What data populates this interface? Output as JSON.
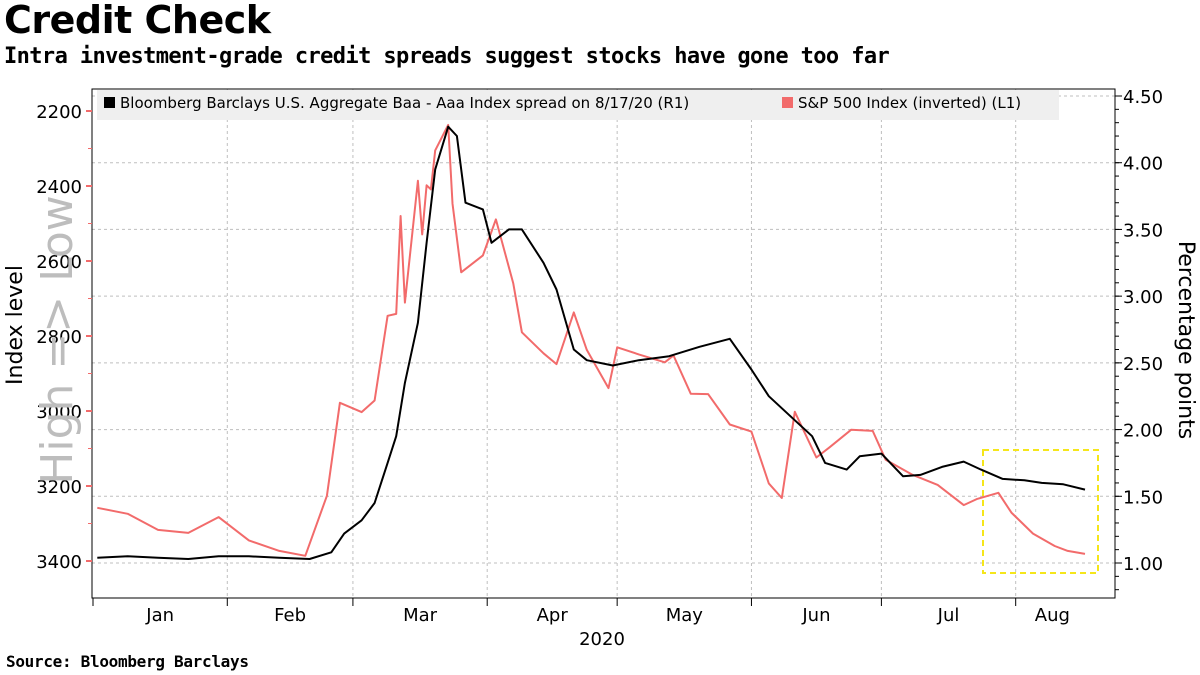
{
  "header": {
    "title": "Credit Check",
    "subtitle": "Intra investment-grade credit spreads suggest stocks have gone too far"
  },
  "footer": {
    "source": "Source: Bloomberg Barclays"
  },
  "colors": {
    "spread": "#000000",
    "sp500": "#f26b6b",
    "highlight": "#f5e61b",
    "grid": "#bfbfbf"
  },
  "chart_data": {
    "type": "line",
    "x_tick_labels": [
      "Jan",
      "Feb",
      "Mar",
      "Apr",
      "May",
      "Jun",
      "Jul",
      "Aug"
    ],
    "x_year_label": "2020",
    "left_axis": {
      "label": "Index level",
      "watermark": "High => Low",
      "inverted": true,
      "range": [
        2150,
        3500
      ],
      "ticks": [
        2200,
        2400,
        2600,
        2800,
        3000,
        3200,
        3400
      ]
    },
    "right_axis": {
      "label": "Percentage points",
      "range": [
        0.75,
        4.55
      ],
      "ticks": [
        "4.50",
        "4.00",
        "3.50",
        "3.00",
        "2.50",
        "2.00",
        "1.50",
        "1.00"
      ]
    },
    "legend": [
      {
        "name": "Bloomberg Barclays U.S. Aggregate Baa - Aaa Index spread on 8/17/20 (R1)",
        "color": "#000000"
      },
      {
        "name": "S&P 500 Index (inverted) (L1)",
        "color": "#f26b6b"
      }
    ],
    "grid": true,
    "annotation": "dashed yellow box highlighting late July to mid August divergence",
    "series": [
      {
        "name": "Bloomberg Barclays U.S. Aggregate Baa - Aaa Index spread on 8/17/20 (R1)",
        "axis": "right",
        "points": [
          [
            "2020-01-02",
            1.04
          ],
          [
            "2020-01-09",
            1.05
          ],
          [
            "2020-01-16",
            1.04
          ],
          [
            "2020-01-23",
            1.03
          ],
          [
            "2020-01-30",
            1.05
          ],
          [
            "2020-02-06",
            1.05
          ],
          [
            "2020-02-13",
            1.04
          ],
          [
            "2020-02-20",
            1.03
          ],
          [
            "2020-02-25",
            1.08
          ],
          [
            "2020-02-28",
            1.22
          ],
          [
            "2020-03-03",
            1.32
          ],
          [
            "2020-03-06",
            1.45
          ],
          [
            "2020-03-09",
            1.75
          ],
          [
            "2020-03-11",
            1.95
          ],
          [
            "2020-03-13",
            2.35
          ],
          [
            "2020-03-16",
            2.8
          ],
          [
            "2020-03-18",
            3.4
          ],
          [
            "2020-03-20",
            3.95
          ],
          [
            "2020-03-23",
            4.27
          ],
          [
            "2020-03-25",
            4.2
          ],
          [
            "2020-03-27",
            3.7
          ],
          [
            "2020-03-31",
            3.65
          ],
          [
            "2020-04-02",
            3.4
          ],
          [
            "2020-04-06",
            3.5
          ],
          [
            "2020-04-09",
            3.5
          ],
          [
            "2020-04-14",
            3.25
          ],
          [
            "2020-04-17",
            3.05
          ],
          [
            "2020-04-21",
            2.6
          ],
          [
            "2020-04-24",
            2.52
          ],
          [
            "2020-04-30",
            2.48
          ],
          [
            "2020-05-06",
            2.52
          ],
          [
            "2020-05-13",
            2.55
          ],
          [
            "2020-05-20",
            2.62
          ],
          [
            "2020-05-27",
            2.68
          ],
          [
            "2020-06-01",
            2.45
          ],
          [
            "2020-06-05",
            2.25
          ],
          [
            "2020-06-10",
            2.1
          ],
          [
            "2020-06-15",
            1.95
          ],
          [
            "2020-06-18",
            1.75
          ],
          [
            "2020-06-23",
            1.7
          ],
          [
            "2020-06-26",
            1.8
          ],
          [
            "2020-07-01",
            1.82
          ],
          [
            "2020-07-06",
            1.65
          ],
          [
            "2020-07-10",
            1.66
          ],
          [
            "2020-07-15",
            1.72
          ],
          [
            "2020-07-20",
            1.76
          ],
          [
            "2020-07-24",
            1.7
          ],
          [
            "2020-07-29",
            1.63
          ],
          [
            "2020-08-03",
            1.62
          ],
          [
            "2020-08-07",
            1.6
          ],
          [
            "2020-08-12",
            1.59
          ],
          [
            "2020-08-17",
            1.55
          ]
        ]
      },
      {
        "name": "S&P 500 Index (inverted) (L1)",
        "axis": "left",
        "points": [
          [
            "2020-01-02",
            3258
          ],
          [
            "2020-01-09",
            3274
          ],
          [
            "2020-01-16",
            3317
          ],
          [
            "2020-01-23",
            3325
          ],
          [
            "2020-01-30",
            3283
          ],
          [
            "2020-02-06",
            3345
          ],
          [
            "2020-02-13",
            3373
          ],
          [
            "2020-02-19",
            3386
          ],
          [
            "2020-02-24",
            3226
          ],
          [
            "2020-02-27",
            2978
          ],
          [
            "2020-03-03",
            3003
          ],
          [
            "2020-03-06",
            2972
          ],
          [
            "2020-03-09",
            2746
          ],
          [
            "2020-03-11",
            2741
          ],
          [
            "2020-03-12",
            2480
          ],
          [
            "2020-03-13",
            2711
          ],
          [
            "2020-03-16",
            2386
          ],
          [
            "2020-03-17",
            2529
          ],
          [
            "2020-03-18",
            2398
          ],
          [
            "2020-03-19",
            2409
          ],
          [
            "2020-03-20",
            2305
          ],
          [
            "2020-03-23",
            2237
          ],
          [
            "2020-03-24",
            2447
          ],
          [
            "2020-03-26",
            2630
          ],
          [
            "2020-03-31",
            2585
          ],
          [
            "2020-04-03",
            2489
          ],
          [
            "2020-04-07",
            2659
          ],
          [
            "2020-04-09",
            2790
          ],
          [
            "2020-04-14",
            2846
          ],
          [
            "2020-04-17",
            2875
          ],
          [
            "2020-04-21",
            2737
          ],
          [
            "2020-04-24",
            2837
          ],
          [
            "2020-04-29",
            2939
          ],
          [
            "2020-05-01",
            2830
          ],
          [
            "2020-05-06",
            2849
          ],
          [
            "2020-05-12",
            2870
          ],
          [
            "2020-05-14",
            2852
          ],
          [
            "2020-05-18",
            2954
          ],
          [
            "2020-05-22",
            2955
          ],
          [
            "2020-05-27",
            3036
          ],
          [
            "2020-06-01",
            3055
          ],
          [
            "2020-06-05",
            3193
          ],
          [
            "2020-06-08",
            3232
          ],
          [
            "2020-06-11",
            3002
          ],
          [
            "2020-06-16",
            3124
          ],
          [
            "2020-06-19",
            3097
          ],
          [
            "2020-06-24",
            3050
          ],
          [
            "2020-06-29",
            3053
          ],
          [
            "2020-07-02",
            3130
          ],
          [
            "2020-07-08",
            3169
          ],
          [
            "2020-07-14",
            3197
          ],
          [
            "2020-07-20",
            3251
          ],
          [
            "2020-07-23",
            3235
          ],
          [
            "2020-07-28",
            3218
          ],
          [
            "2020-07-31",
            3271
          ],
          [
            "2020-08-05",
            3327
          ],
          [
            "2020-08-10",
            3360
          ],
          [
            "2020-08-13",
            3373
          ],
          [
            "2020-08-17",
            3381
          ]
        ]
      }
    ]
  }
}
